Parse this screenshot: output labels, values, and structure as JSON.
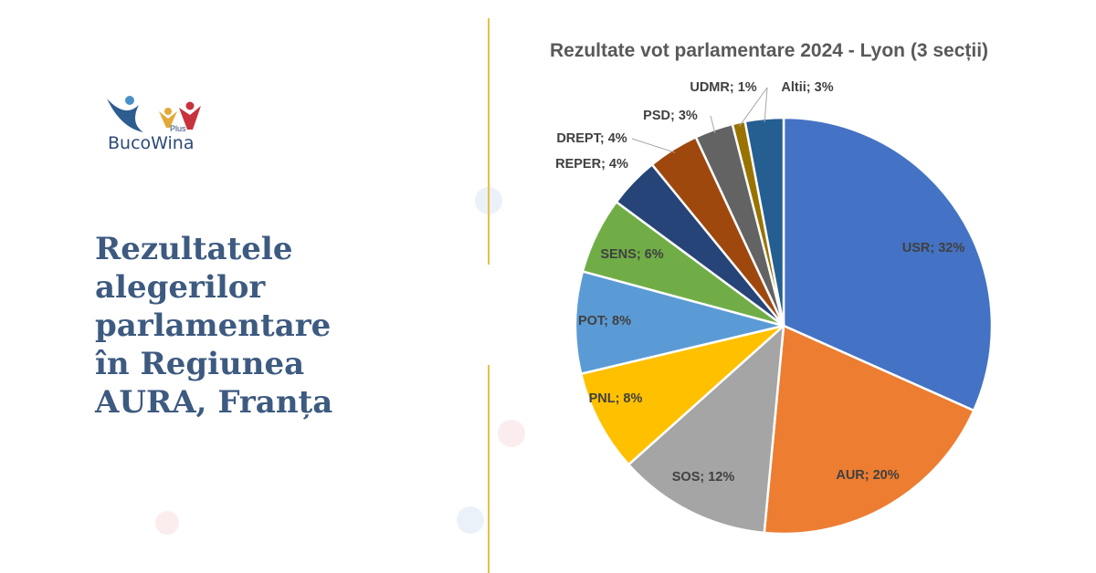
{
  "brand": {
    "name": "BucoWina",
    "suffix": "Plus"
  },
  "heading": [
    "Rezultatele",
    "alegerilor",
    "parlamentare",
    "în Regiunea",
    "AURA, Franța"
  ],
  "chart_data": {
    "type": "pie",
    "title": "Rezultate vot parlamentare 2024 - Lyon (3 secții)",
    "start": "top, clockwise",
    "categories": [
      "USR",
      "AUR",
      "SOS",
      "PNL",
      "POT",
      "SENS",
      "REPER",
      "DREPT",
      "PSD",
      "UDMR",
      "Altii"
    ],
    "values": [
      32,
      20,
      12,
      8,
      8,
      6,
      4,
      4,
      3,
      1,
      3
    ],
    "labels": [
      "USR; 32%",
      "AUR; 20%",
      "SOS; 12%",
      "PNL; 8%",
      "POT; 8%",
      "SENS; 6%",
      "REPER; 4%",
      "DREPT; 4%",
      "PSD; 3%",
      "UDMR; 1%",
      "Altii; 3%"
    ],
    "colors": [
      "#4472C4",
      "#ED7D31",
      "#A5A5A5",
      "#FFC000",
      "#5B9BD5",
      "#70AD47",
      "#264478",
      "#9E480E",
      "#636363",
      "#997300",
      "#255E91"
    ]
  }
}
